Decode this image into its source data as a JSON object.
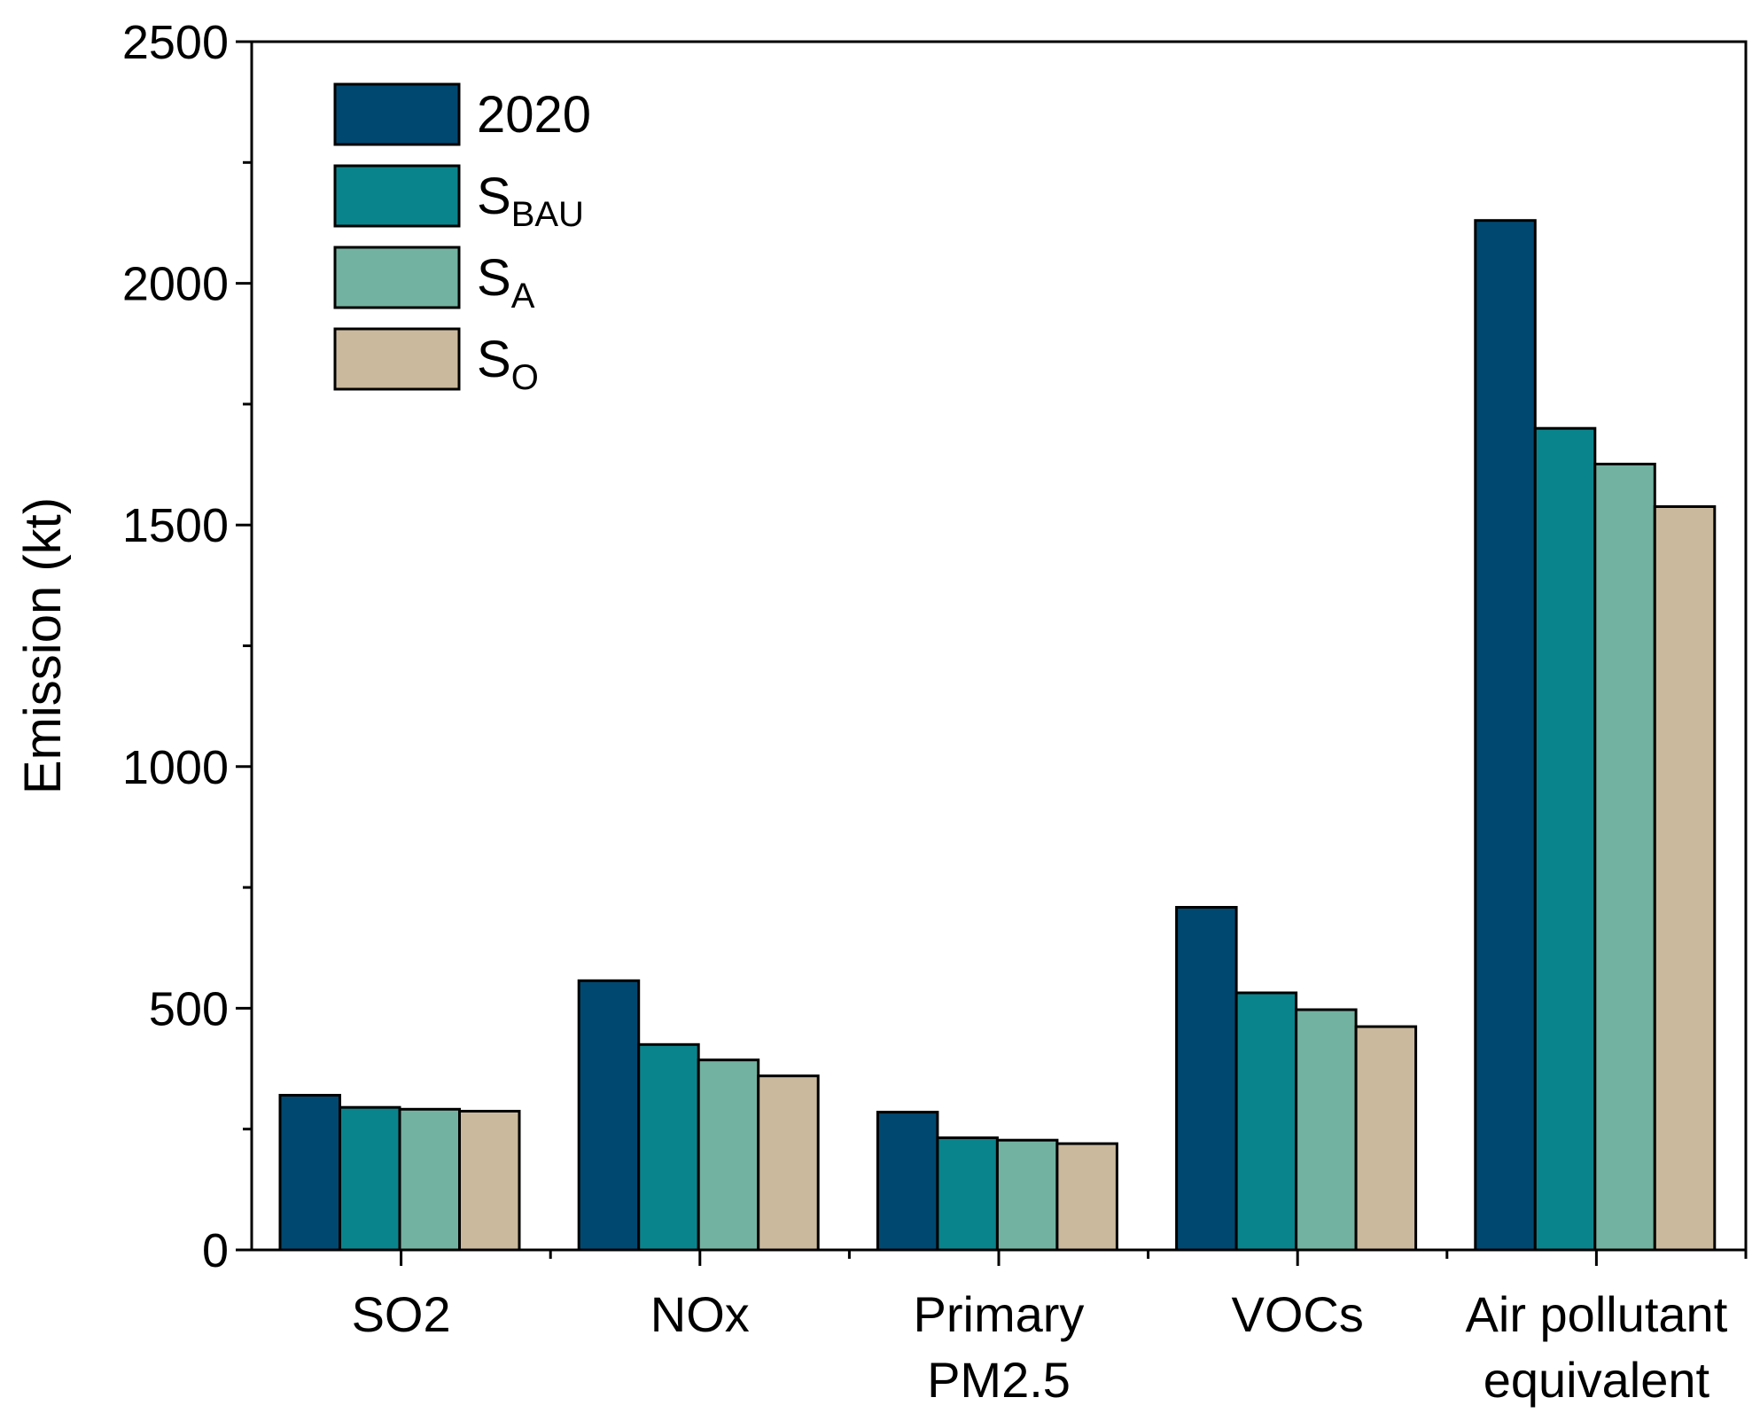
{
  "chart_data": {
    "type": "bar",
    "title": "",
    "xlabel": "",
    "ylabel": "Emission (kt)",
    "ylim": [
      0,
      2500
    ],
    "yticks": [
      0,
      500,
      1000,
      1500,
      2000,
      2500
    ],
    "grid": false,
    "legend_position": "top-left",
    "categories": [
      [
        "SO2"
      ],
      [
        "NOx"
      ],
      [
        "Primary",
        "PM2.5"
      ],
      [
        "VOCs"
      ],
      [
        "Air pollutant",
        "equivalent"
      ]
    ],
    "series": [
      {
        "name": "2020",
        "base": "2020",
        "sub": "",
        "color": "#004870",
        "values": [
          320,
          557,
          285,
          709,
          2130
        ]
      },
      {
        "name": "S_BAU",
        "base": "S",
        "sub": "BAU",
        "color": "#0A848C",
        "values": [
          295,
          425,
          232,
          532,
          1700
        ]
      },
      {
        "name": "S_A",
        "base": "S",
        "sub": "A",
        "color": "#72B2A0",
        "values": [
          291,
          393,
          227,
          497,
          1626
        ]
      },
      {
        "name": "S_O",
        "base": "S",
        "sub": "O",
        "color": "#CAB99C",
        "values": [
          287,
          360,
          220,
          462,
          1538
        ]
      }
    ]
  }
}
